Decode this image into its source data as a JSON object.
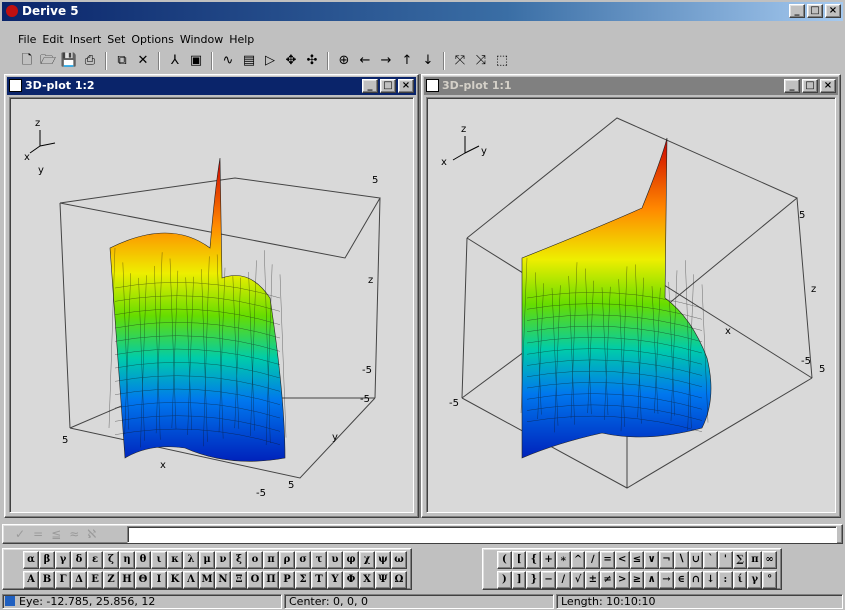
{
  "app": {
    "title": "Derive 5"
  },
  "menu": [
    "File",
    "Edit",
    "Insert",
    "Set",
    "Options",
    "Window",
    "Help"
  ],
  "toolbar": [
    {
      "icon": "new-icon",
      "glyph": "🗋"
    },
    {
      "icon": "open-icon",
      "glyph": "🗁"
    },
    {
      "icon": "save-icon",
      "glyph": "💾"
    },
    {
      "icon": "print-icon",
      "glyph": "⎙"
    },
    {
      "icon": "copy-icon",
      "glyph": "⧉"
    },
    {
      "icon": "delete-icon",
      "glyph": "✕"
    },
    {
      "icon": "simplify-icon",
      "glyph": "⅄"
    },
    {
      "icon": "author-icon",
      "glyph": "▣"
    },
    {
      "icon": "plot-icon",
      "glyph": "∿"
    },
    {
      "icon": "grid-icon",
      "glyph": "▤"
    },
    {
      "icon": "play-icon",
      "glyph": "▷"
    },
    {
      "icon": "move-icon",
      "glyph": "✥"
    },
    {
      "icon": "rotate-icon",
      "glyph": "✣"
    },
    {
      "icon": "zoom-icon",
      "glyph": "⊕"
    },
    {
      "icon": "arrow-left-icon",
      "glyph": "←"
    },
    {
      "icon": "arrow-right-icon",
      "glyph": "→"
    },
    {
      "icon": "arrow-up-icon",
      "glyph": "↑"
    },
    {
      "icon": "arrow-down-icon",
      "glyph": "↓"
    },
    {
      "icon": "zoom-in-icon",
      "glyph": "⤧"
    },
    {
      "icon": "zoom-out-icon",
      "glyph": "⤨"
    },
    {
      "icon": "box-icon",
      "glyph": "⬚"
    }
  ],
  "windows": [
    {
      "title": "3D-plot 1:2",
      "active": true,
      "labels": {
        "axis_x": "x",
        "axis_y": "y",
        "axis_z": "z",
        "z_top": "5",
        "z_mid": "z",
        "z_bot": "-5",
        "y_top": "-5",
        "y_mid": "y",
        "y_bot": "5",
        "x_left": "5",
        "x_mid": "x",
        "x_right": "-5"
      }
    },
    {
      "title": "3D-plot 1:1",
      "active": false,
      "labels": {
        "axis_x": "x",
        "axis_y": "y",
        "axis_z": "z",
        "z_top": "5",
        "z_mid": "z",
        "z_bot": "-5",
        "right_5": "5",
        "left_5": "-5",
        "x_mid": "x"
      }
    }
  ],
  "colors": {
    "titlebar_active": "#0a246a",
    "titlebar_inactive": "#808080",
    "surface_high": "#cc0000",
    "surface_mid": "#88dd00",
    "surface_low": "#0022bb"
  },
  "greek": {
    "lower": [
      "α",
      "β",
      "γ",
      "δ",
      "ε",
      "ζ",
      "η",
      "θ",
      "ι",
      "κ",
      "λ",
      "μ",
      "ν",
      "ξ",
      "ο",
      "π",
      "ρ",
      "σ",
      "τ",
      "υ",
      "φ",
      "χ",
      "ψ",
      "ω"
    ],
    "upper": [
      "Α",
      "Β",
      "Γ",
      "Δ",
      "Ε",
      "Ζ",
      "Η",
      "Θ",
      "Ι",
      "Κ",
      "Λ",
      "Μ",
      "Ν",
      "Ξ",
      "Ο",
      "Π",
      "Ρ",
      "Σ",
      "Τ",
      "Υ",
      "Φ",
      "Χ",
      "Ψ",
      "Ω"
    ]
  },
  "math": {
    "row1": [
      "(",
      "[",
      "{",
      "+",
      "∗",
      "^",
      "∕",
      "=",
      "<",
      "≤",
      "∨",
      "¬",
      "∖",
      "∪",
      "`",
      "'",
      "∑",
      "π",
      "∞"
    ],
    "row2": [
      ")",
      "]",
      "}",
      "−",
      "/",
      "√",
      "±",
      "≠",
      ">",
      "≥",
      "∧",
      "→",
      "∈",
      "∩",
      "↓",
      ":",
      "ί",
      "γ",
      "°"
    ]
  },
  "entry": {
    "value": "",
    "tools": [
      "✓",
      "=",
      "≦",
      "≈",
      "ℵ"
    ]
  },
  "status": {
    "eye": "Eye: -12.785, 25.856, 12",
    "center": "Center: 0, 0, 0",
    "length": "Length: 10:10:10"
  }
}
